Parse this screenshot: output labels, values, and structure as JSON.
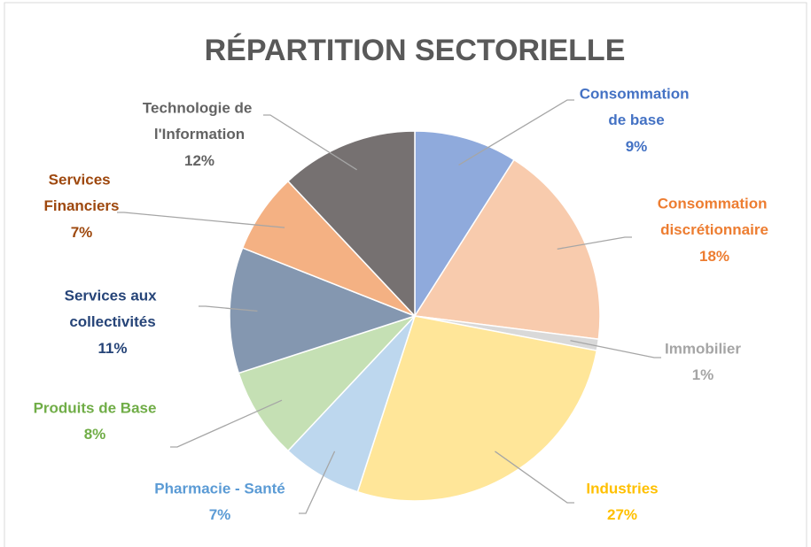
{
  "chart_data": {
    "type": "pie",
    "title": "RÉPARTITION SECTORIELLE",
    "categories": [
      "Consommation de base",
      "Consommation discrétionnaire",
      "Immobilier",
      "Industries",
      "Pharmacie - Santé",
      "Produits de Base",
      "Services aux collectivités",
      "Services Financiers",
      "Technologie de l'Information"
    ],
    "values": [
      9,
      18,
      1,
      27,
      7,
      8,
      11,
      7,
      12
    ],
    "value_labels": [
      "9%",
      "18%",
      "1%",
      "27%",
      "7%",
      "8%",
      "11%",
      "7%",
      "12%"
    ],
    "colors": [
      "#8faadc",
      "#f8cbad",
      "#d9d9d9",
      "#ffe699",
      "#bdd7ee",
      "#c5e0b4",
      "#8497b0",
      "#f4b183",
      "#767171"
    ],
    "label_colors": [
      "#4472c4",
      "#ed7d31",
      "#a5a5a5",
      "#ffc000",
      "#5b9bd5",
      "#70ad47",
      "#264478",
      "#9e480e",
      "#636363"
    ]
  }
}
